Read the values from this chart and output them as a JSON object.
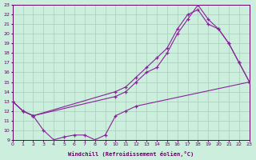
{
  "xlabel": "Windchill (Refroidissement éolien,°C)",
  "bg_color": "#cceedd",
  "grid_color": "#aaccbb",
  "line_color": "#882299",
  "xlim": [
    0,
    23
  ],
  "ylim": [
    9,
    23
  ],
  "xticks": [
    0,
    1,
    2,
    3,
    4,
    5,
    6,
    7,
    8,
    9,
    10,
    11,
    12,
    13,
    14,
    15,
    16,
    17,
    18,
    19,
    20,
    21,
    22,
    23
  ],
  "yticks": [
    9,
    10,
    11,
    12,
    13,
    14,
    15,
    16,
    17,
    18,
    19,
    20,
    21,
    22,
    23
  ],
  "curves": [
    {
      "x": [
        0,
        1,
        2,
        10,
        11,
        12,
        13,
        14,
        15,
        16,
        17,
        18,
        19,
        20,
        21,
        22,
        23
      ],
      "y": [
        13,
        12,
        11.5,
        13.5,
        14,
        15,
        16,
        16.5,
        18,
        20,
        21.5,
        23,
        21.5,
        20.5,
        19,
        17,
        15
      ]
    },
    {
      "x": [
        0,
        1,
        2,
        10,
        11,
        12,
        13,
        14,
        15,
        16,
        17,
        18,
        19,
        20,
        21,
        22,
        23
      ],
      "y": [
        13,
        12,
        11.5,
        14,
        14.5,
        15.5,
        16.5,
        17.5,
        18.5,
        20.5,
        22,
        22.5,
        21,
        20.5,
        19,
        17,
        15
      ]
    },
    {
      "x": [
        0,
        1,
        2,
        3,
        4,
        5,
        6,
        7,
        8,
        9,
        10,
        11,
        12,
        23
      ],
      "y": [
        13,
        12,
        11.5,
        10,
        9,
        9.3,
        9.5,
        9.5,
        9,
        9.5,
        11.5,
        12,
        12.5,
        15
      ]
    }
  ]
}
